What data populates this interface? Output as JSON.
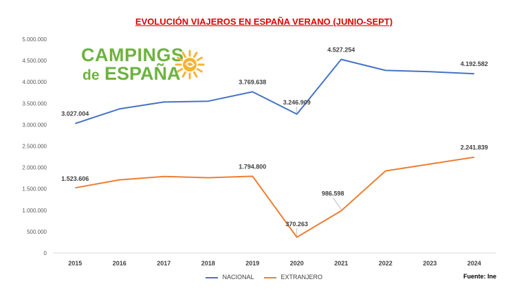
{
  "colors": {
    "nacional": "#4472c4",
    "extranjero": "#ed7d31",
    "title": "#e00000",
    "logo_green": "#6db33f",
    "logo_sun": "#f5b335",
    "grid": "#d9d9d9",
    "axis_text": "#595959"
  },
  "logo": {
    "line1": "CAMPINGS",
    "line2_prefix": "de",
    "line2": "ESPAÑA",
    "icon": "sun-icon"
  },
  "source": "Fuente: Ine",
  "chart_data": {
    "type": "line",
    "title": "EVOLUCIÓN VIAJEROS EN ESPAÑA VERANO (JUNIO-SEPT)",
    "xlabel": "",
    "ylabel": "",
    "categories": [
      "2015",
      "2016",
      "2017",
      "2018",
      "2019",
      "2020",
      "2021",
      "2022",
      "2023",
      "2024"
    ],
    "ylim": [
      0,
      5000000
    ],
    "yticks": [
      0,
      500000,
      1000000,
      1500000,
      2000000,
      2500000,
      3000000,
      3500000,
      4000000,
      4500000,
      5000000
    ],
    "ytick_labels": [
      "0",
      "500.000",
      "1.000.000",
      "1.500.000",
      "2.000.000",
      "2.500.000",
      "3.000.000",
      "3.500.000",
      "4.000.000",
      "4.500.000",
      "5.000.000"
    ],
    "grid": false,
    "legend_position": "bottom",
    "series": [
      {
        "name": "NACIONAL",
        "values": [
          3027004,
          3370000,
          3530000,
          3550000,
          3769638,
          3246909,
          4527254,
          4270000,
          4240000,
          4192582
        ],
        "labels": [
          {
            "index": 0,
            "text": "3.027.004"
          },
          {
            "index": 4,
            "text": "3.769.638"
          },
          {
            "index": 5,
            "text": "3.246.909"
          },
          {
            "index": 6,
            "text": "4.527.254"
          },
          {
            "index": 9,
            "text": "4.192.582"
          }
        ]
      },
      {
        "name": "EXTRANJERO",
        "values": [
          1523606,
          1710000,
          1790000,
          1760000,
          1794800,
          370263,
          986598,
          1920000,
          2080000,
          2241839
        ],
        "labels": [
          {
            "index": 0,
            "text": "1.523.606"
          },
          {
            "index": 4,
            "text": "1.794.800"
          },
          {
            "index": 5,
            "text": "370.263"
          },
          {
            "index": 6,
            "text": "986.598"
          },
          {
            "index": 9,
            "text": "2.241.839"
          }
        ]
      }
    ]
  }
}
